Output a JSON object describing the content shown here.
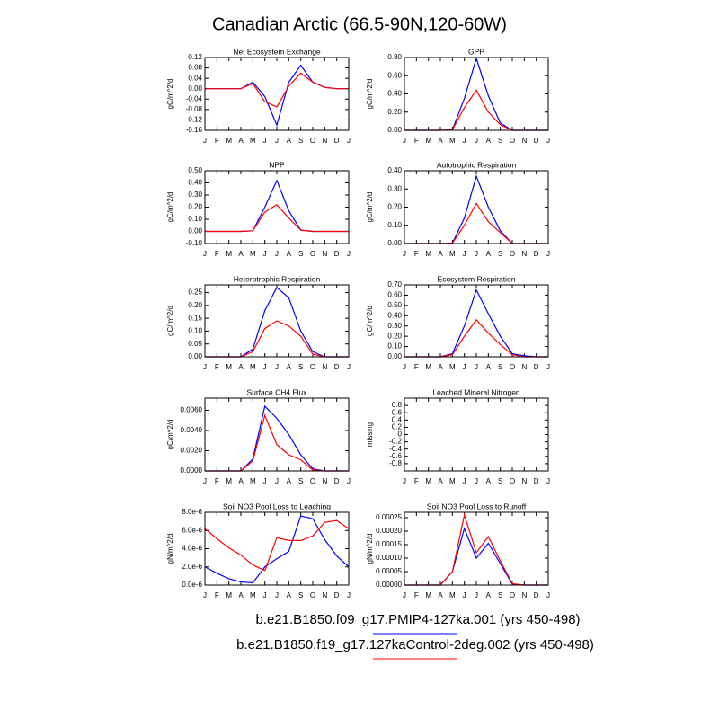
{
  "title": "Canadian Arctic (66.5-90N,120-60W)",
  "legend": [
    {
      "name": "b.e21.B1850.f09_g17.PMIP4-127ka.001 (yrs 450-498)",
      "color": "#0000ff"
    },
    {
      "name": "b.e21.B1850.f19_g17.127kaControl-2deg.002 (yrs 450-498)",
      "color": "#ff0000"
    }
  ],
  "chart_data": [
    {
      "type": "line",
      "title": "Net Ecosystem Exchange",
      "y_label": "gC/m^2/d",
      "categories": [
        "J",
        "F",
        "M",
        "A",
        "M",
        "J",
        "J",
        "A",
        "S",
        "O",
        "N",
        "D",
        "J"
      ],
      "ylim": [
        -0.16,
        0.12
      ],
      "yticks": [
        0.12,
        0.08,
        0.04,
        {
          "value": 0,
          "label": "0.00"
        },
        -0.04,
        -0.08,
        {
          "value": -0.12,
          "label": "-0.12"
        },
        -0.16
      ],
      "series": [
        {
          "color": "#0000ff",
          "values": [
            0,
            0,
            0,
            0,
            0.025,
            -0.03,
            -0.14,
            0.025,
            0.09,
            0.025,
            0.005,
            0,
            0
          ]
        },
        {
          "color": "#ff0000",
          "values": [
            0,
            0,
            0,
            0,
            0.02,
            -0.05,
            -0.07,
            0.01,
            0.06,
            0.025,
            0.005,
            0,
            0
          ]
        }
      ]
    },
    {
      "type": "line",
      "title": "GPP",
      "y_label": "gC/m^2/d",
      "categories": [
        "J",
        "F",
        "M",
        "A",
        "M",
        "J",
        "J",
        "A",
        "S",
        "O",
        "N",
        "D",
        "J"
      ],
      "ylim": [
        0,
        0.8
      ],
      "yticks": [
        {
          "value": 0.8,
          "label": "0.80"
        },
        {
          "value": 0.6,
          "label": "0.60"
        },
        {
          "value": 0.4,
          "label": "0.40"
        },
        {
          "value": 0.2,
          "label": "0.20"
        },
        {
          "value": 0,
          "label": "0.00"
        }
      ],
      "series": [
        {
          "color": "#0000ff",
          "values": [
            0,
            0,
            0,
            0,
            0.005,
            0.35,
            0.79,
            0.38,
            0.08,
            0,
            0,
            0,
            0
          ]
        },
        {
          "color": "#ff0000",
          "values": [
            0,
            0,
            0,
            0,
            0.005,
            0.25,
            0.44,
            0.2,
            0.06,
            0,
            0,
            0,
            0
          ]
        }
      ]
    },
    {
      "type": "line",
      "title": "NPP",
      "y_label": "gC/m^2/d",
      "categories": [
        "J",
        "F",
        "M",
        "A",
        "M",
        "J",
        "J",
        "A",
        "S",
        "O",
        "N",
        "D",
        "J"
      ],
      "ylim": [
        -0.1,
        0.5
      ],
      "yticks": [
        {
          "value": 0.5,
          "label": "0.50"
        },
        {
          "value": 0.4,
          "label": "0.40"
        },
        {
          "value": 0.3,
          "label": "0.30"
        },
        {
          "value": 0.2,
          "label": "0.20"
        },
        {
          "value": 0.1,
          "label": "0.10"
        },
        {
          "value": 0,
          "label": "0.00"
        },
        {
          "value": -0.1,
          "label": "-0.10"
        }
      ],
      "series": [
        {
          "color": "#0000ff",
          "values": [
            0,
            0,
            0,
            0,
            0.005,
            0.2,
            0.42,
            0.17,
            0.01,
            0,
            0,
            0,
            0
          ]
        },
        {
          "color": "#ff0000",
          "values": [
            0,
            0,
            0,
            0,
            0.005,
            0.16,
            0.22,
            0.11,
            0.01,
            0,
            0,
            0,
            0
          ]
        }
      ]
    },
    {
      "type": "line",
      "title": "Autotrophic Respiration",
      "y_label": "gC/m^2/d",
      "categories": [
        "J",
        "F",
        "M",
        "A",
        "M",
        "J",
        "J",
        "A",
        "S",
        "O",
        "N",
        "D",
        "J"
      ],
      "ylim": [
        0,
        0.4
      ],
      "yticks": [
        {
          "value": 0.4,
          "label": "0.40"
        },
        {
          "value": 0.3,
          "label": "0.30"
        },
        {
          "value": 0.2,
          "label": "0.20"
        },
        {
          "value": 0.1,
          "label": "0.10"
        },
        {
          "value": 0,
          "label": "0.00"
        }
      ],
      "series": [
        {
          "color": "#0000ff",
          "values": [
            0,
            0,
            0,
            0,
            0.002,
            0.14,
            0.37,
            0.2,
            0.07,
            0,
            0,
            0,
            0
          ]
        },
        {
          "color": "#ff0000",
          "values": [
            0,
            0,
            0,
            0,
            0.002,
            0.1,
            0.22,
            0.12,
            0.06,
            0,
            0,
            0,
            0
          ]
        }
      ]
    },
    {
      "type": "line",
      "title": "Heterotrophic Respiration",
      "y_label": "gC/m^2/d",
      "categories": [
        "J",
        "F",
        "M",
        "A",
        "M",
        "J",
        "J",
        "A",
        "S",
        "O",
        "N",
        "D",
        "J"
      ],
      "ylim": [
        0,
        0.28
      ],
      "yticks": [
        0.25,
        {
          "value": 0.2,
          "label": "0.20"
        },
        0.15,
        {
          "value": 0.1,
          "label": "0.10"
        },
        0.05,
        {
          "value": 0,
          "label": "0.00"
        }
      ],
      "series": [
        {
          "color": "#0000ff",
          "values": [
            0,
            0,
            0,
            0,
            0.03,
            0.18,
            0.27,
            0.23,
            0.1,
            0.02,
            0,
            0,
            0
          ]
        },
        {
          "color": "#ff0000",
          "values": [
            0,
            0,
            0,
            0,
            0.02,
            0.11,
            0.14,
            0.12,
            0.08,
            0.01,
            0,
            0,
            0
          ]
        }
      ]
    },
    {
      "type": "line",
      "title": "Ecosystem Respiration",
      "y_label": "gC/m^2/d",
      "categories": [
        "J",
        "F",
        "M",
        "A",
        "M",
        "J",
        "J",
        "A",
        "S",
        "O",
        "N",
        "D",
        "J"
      ],
      "ylim": [
        0,
        0.7
      ],
      "yticks": [
        {
          "value": 0.7,
          "label": "0.70"
        },
        {
          "value": 0.6,
          "label": "0.60"
        },
        {
          "value": 0.5,
          "label": "0.50"
        },
        {
          "value": 0.4,
          "label": "0.40"
        },
        {
          "value": 0.3,
          "label": "0.30"
        },
        {
          "value": 0.2,
          "label": "0.20"
        },
        {
          "value": 0.1,
          "label": "0.10"
        },
        {
          "value": 0,
          "label": "0.00"
        }
      ],
      "series": [
        {
          "color": "#0000ff",
          "values": [
            0,
            0,
            0,
            0,
            0.03,
            0.3,
            0.65,
            0.42,
            0.2,
            0.03,
            0.01,
            0,
            0
          ]
        },
        {
          "color": "#ff0000",
          "values": [
            0,
            0,
            0,
            0,
            0.02,
            0.2,
            0.36,
            0.23,
            0.12,
            0.02,
            0,
            0,
            0
          ]
        }
      ]
    },
    {
      "type": "line",
      "title": "Surface CH4 Flux",
      "y_label": "gC/m^2/d",
      "categories": [
        "J",
        "F",
        "M",
        "A",
        "M",
        "J",
        "J",
        "A",
        "S",
        "O",
        "N",
        "D",
        "J"
      ],
      "ylim": [
        0,
        0.0072
      ],
      "yticks": [
        {
          "value": 0.006,
          "label": "0.0060"
        },
        {
          "value": 0.004,
          "label": "0.0040"
        },
        {
          "value": 0.002,
          "label": "0.0020"
        },
        {
          "value": 0,
          "label": "0.0000"
        }
      ],
      "series": [
        {
          "color": "#0000ff",
          "values": [
            0,
            0,
            0,
            0,
            0.0012,
            0.0064,
            0.0052,
            0.0036,
            0.0016,
            0.0002,
            0,
            0,
            0
          ]
        },
        {
          "color": "#ff0000",
          "values": [
            0,
            0,
            0,
            0,
            0.001,
            0.0055,
            0.0026,
            0.0016,
            0.0011,
            0.0001,
            0,
            0,
            0
          ]
        }
      ]
    },
    {
      "type": "line",
      "title": "Leached Mineral Nitrogen",
      "y_label": "missing",
      "categories": [
        "J",
        "F",
        "M",
        "A",
        "M",
        "J",
        "J",
        "A",
        "S",
        "O",
        "N",
        "D",
        "J"
      ],
      "ylim": [
        -1,
        1
      ],
      "yticks": [
        0.8,
        0.6,
        0.4,
        0.2,
        0,
        -0.2,
        -0.4,
        -0.6,
        -0.8
      ],
      "series": []
    },
    {
      "type": "line",
      "title": "Soil NO3 Pool Loss to Leaching",
      "y_label": "gN/m^2/d",
      "categories": [
        "J",
        "F",
        "M",
        "A",
        "M",
        "J",
        "J",
        "A",
        "S",
        "O",
        "N",
        "D",
        "J"
      ],
      "ylim": [
        0,
        8e-06
      ],
      "yticks": [
        {
          "value": 8e-06,
          "label": "8.0e-6"
        },
        {
          "value": 6e-06,
          "label": "6.0e-6"
        },
        {
          "value": 4e-06,
          "label": "4.0e-6"
        },
        {
          "value": 2e-06,
          "label": "2.0e-6"
        },
        {
          "value": 0,
          "label": "0.0e-6"
        }
      ],
      "series": [
        {
          "color": "#0000ff",
          "values": [
            2e-06,
            1.3e-06,
            7e-07,
            3.5e-07,
            2.5e-07,
            2e-06,
            2.9e-06,
            3.7e-06,
            7.6e-06,
            7.3e-06,
            5e-06,
            3.2e-06,
            2e-06
          ]
        },
        {
          "color": "#ff0000",
          "values": [
            6.2e-06,
            5.1e-06,
            4.1e-06,
            3.3e-06,
            2.2e-06,
            1.6e-06,
            5.2e-06,
            4.9e-06,
            4.9e-06,
            5.4e-06,
            6.9e-06,
            7.1e-06,
            6.2e-06
          ]
        }
      ]
    },
    {
      "type": "line",
      "title": "Soil NO3 Pool Loss to Runoff",
      "y_label": "gN/m^2/d",
      "categories": [
        "J",
        "F",
        "M",
        "A",
        "M",
        "J",
        "J",
        "A",
        "S",
        "O",
        "N",
        "D",
        "J"
      ],
      "ylim": [
        0,
        0.00027
      ],
      "yticks": [
        {
          "value": 0.00025,
          "label": "0.00025"
        },
        {
          "value": 0.0002,
          "label": "0.00020"
        },
        {
          "value": 0.00015,
          "label": "0.00015"
        },
        {
          "value": 0.0001,
          "label": "0.00010"
        },
        {
          "value": 5e-05,
          "label": "0.00005"
        },
        {
          "value": 0,
          "label": "0.00000"
        }
      ],
      "series": [
        {
          "color": "#0000ff",
          "values": [
            0,
            0,
            0,
            0,
            5e-05,
            0.00021,
            0.0001,
            0.000155,
            8e-05,
            3e-06,
            0,
            0,
            0
          ]
        },
        {
          "color": "#ff0000",
          "values": [
            0,
            0,
            0,
            0,
            5e-05,
            0.00026,
            0.00012,
            0.00018,
            9e-05,
            5e-06,
            0,
            0,
            0
          ]
        }
      ]
    }
  ]
}
